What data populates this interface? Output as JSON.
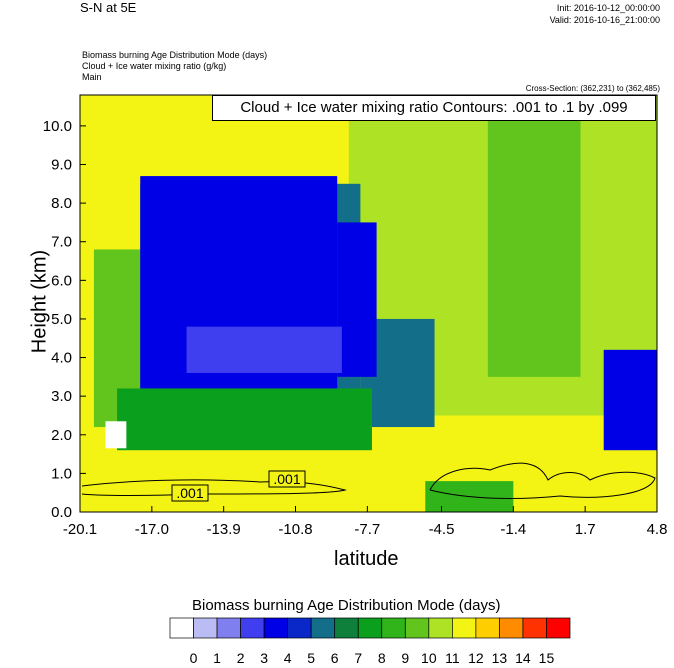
{
  "header": {
    "title": "S-N at 5E",
    "init": "Init: 2016-10-12_00:00:00",
    "valid": "Valid: 2016-10-16_21:00:00",
    "field1": "Biomass burning Age Distribution Mode   (days)",
    "field2": "Cloud + Ice water mixing ratio   (g/kg)",
    "field3": "Main",
    "cross_section": "Cross-Section: (362,231) to (362,485)",
    "contour_info": "Cloud + Ice water mixing ratio Contours: .001 to .1 by .099"
  },
  "chart_data": {
    "type": "heatmap",
    "xlabel": "latitude",
    "ylabel": "Height (km)",
    "x_ticks": [
      "-20.1",
      "-17.0",
      "-13.9",
      "-10.8",
      "-7.7",
      "-4.5",
      "-1.4",
      "1.7",
      "4.8"
    ],
    "x_range": [
      -20.1,
      4.8
    ],
    "y_ticks": [
      "0.0",
      "1.0",
      "2.0",
      "3.0",
      "4.0",
      "5.0",
      "6.0",
      "7.0",
      "8.0",
      "9.0",
      "10.0"
    ],
    "y_range": [
      0.0,
      10.8
    ],
    "contour_labels": [
      ".001",
      ".001"
    ],
    "colorbar": {
      "title": "Biomass burning Age Distribution Mode  (days)",
      "labels": [
        "0",
        "1",
        "2",
        "3",
        "4",
        "5",
        "6",
        "7",
        "8",
        "9",
        "10",
        "11",
        "12",
        "13",
        "14",
        "15"
      ],
      "colors": [
        "#ffffff",
        "#bcbcf4",
        "#7f7ff0",
        "#3f3ff0",
        "#0000e6",
        "#0a28c8",
        "#136e8a",
        "#0f7f3c",
        "#0aa01e",
        "#30b41a",
        "#62c51e",
        "#aee224",
        "#f4f414",
        "#ffce00",
        "#ff8c00",
        "#ff3200",
        "#ff0000"
      ]
    },
    "regions": [
      {
        "name": "background",
        "level": 12,
        "x": [
          -20.1,
          4.8
        ],
        "y": [
          0,
          10.8
        ]
      },
      {
        "name": "upper-green",
        "level": 11,
        "x": [
          -8.5,
          4.8
        ],
        "y": [
          2.5,
          10.8
        ]
      },
      {
        "name": "upper-green-right",
        "level": 10,
        "x": [
          -2.5,
          1.5
        ],
        "y": [
          3.5,
          10.8
        ]
      },
      {
        "name": "outer-green-left",
        "level": 10,
        "x": [
          -19.5,
          -16.0
        ],
        "y": [
          2.2,
          6.8
        ]
      },
      {
        "name": "teal-block",
        "level": 6,
        "x": [
          -17.5,
          -8.0
        ],
        "y": [
          1.8,
          8.5
        ]
      },
      {
        "name": "teal-right",
        "level": 6,
        "x": [
          -8.0,
          -4.8
        ],
        "y": [
          2.2,
          5.0
        ]
      },
      {
        "name": "blue-core",
        "level": 4,
        "x": [
          -17.5,
          -9.0
        ],
        "y": [
          3.2,
          8.7
        ]
      },
      {
        "name": "blue-right",
        "level": 4,
        "x": [
          -9.0,
          -7.3
        ],
        "y": [
          3.5,
          7.5
        ]
      },
      {
        "name": "lightblue-core",
        "level": 3,
        "x": [
          -15.5,
          -8.8
        ],
        "y": [
          3.6,
          4.8
        ]
      },
      {
        "name": "green-lower",
        "level": 8,
        "x": [
          -18.5,
          -7.5
        ],
        "y": [
          1.6,
          3.2
        ]
      },
      {
        "name": "blue-far-right",
        "level": 4,
        "x": [
          2.5,
          4.8
        ],
        "y": [
          1.6,
          4.2
        ]
      },
      {
        "name": "white-patch",
        "level": 0,
        "x": [
          -19.0,
          -18.1
        ],
        "y": [
          1.65,
          2.35
        ]
      },
      {
        "name": "lower-green-band",
        "level": 9,
        "x": [
          -5.2,
          -1.4
        ],
        "y": [
          0.0,
          0.8
        ]
      }
    ]
  }
}
